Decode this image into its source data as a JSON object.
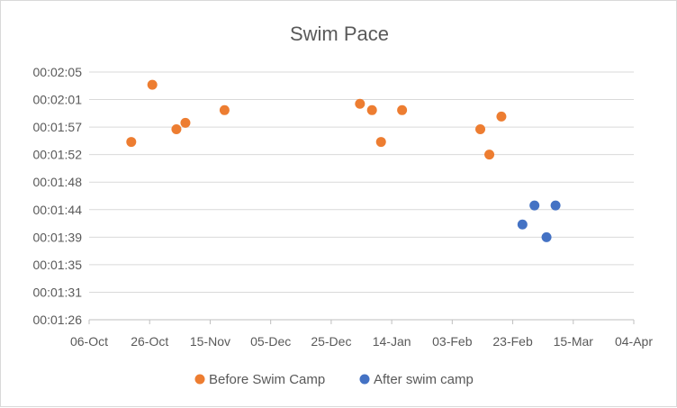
{
  "chart_data": {
    "type": "scatter",
    "title": "Swim Pace",
    "xlabel": "",
    "ylabel": "",
    "x_ticks": [
      "06-Oct",
      "26-Oct",
      "15-Nov",
      "05-Dec",
      "25-Dec",
      "14-Jan",
      "03-Feb",
      "23-Feb",
      "15-Mar",
      "04-Apr"
    ],
    "y_ticks": [
      "00:01:26",
      "00:01:31",
      "00:01:35",
      "00:01:39",
      "00:01:44",
      "00:01:48",
      "00:01:52",
      "00:01:57",
      "00:02:01",
      "00:02:05"
    ],
    "xlim": [
      "06-Oct",
      "04-Apr"
    ],
    "ylim": [
      "00:01:26",
      "00:02:05"
    ],
    "grid": "horizontal",
    "legend": "bottom",
    "series": [
      {
        "name": "Before Swim Camp",
        "color": "#ED7D31",
        "points": [
          {
            "x": "20-Oct",
            "y": "00:01:54"
          },
          {
            "x": "27-Oct",
            "y": "00:02:03"
          },
          {
            "x": "04-Nov",
            "y": "00:01:56"
          },
          {
            "x": "07-Nov",
            "y": "00:01:57"
          },
          {
            "x": "20-Nov",
            "y": "00:01:59"
          },
          {
            "x": "04-Jan",
            "y": "00:02:00"
          },
          {
            "x": "08-Jan",
            "y": "00:01:59"
          },
          {
            "x": "11-Jan",
            "y": "00:01:54"
          },
          {
            "x": "18-Jan",
            "y": "00:01:59"
          },
          {
            "x": "13-Feb",
            "y": "00:01:56"
          },
          {
            "x": "16-Feb",
            "y": "00:01:52"
          },
          {
            "x": "20-Feb",
            "y": "00:01:58"
          }
        ]
      },
      {
        "name": "After swim camp",
        "color": "#4472C4",
        "points": [
          {
            "x": "27-Feb",
            "y": "00:01:41"
          },
          {
            "x": "02-Mar",
            "y": "00:01:44"
          },
          {
            "x": "06-Mar",
            "y": "00:01:39"
          },
          {
            "x": "09-Mar",
            "y": "00:01:44"
          }
        ]
      }
    ]
  }
}
